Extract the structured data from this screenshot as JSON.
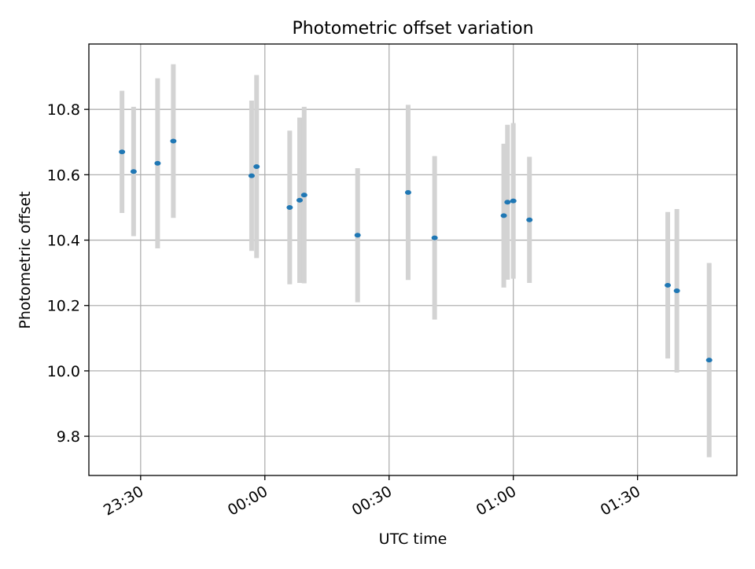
{
  "chart_data": {
    "type": "scatter",
    "title": "Photometric offset variation",
    "xlabel": "UTC time",
    "ylabel": "Photometric offset",
    "x_unit": "minutes after 23:00 UTC",
    "xlim": [
      17.5,
      174
    ],
    "ylim": [
      9.68,
      11.0
    ],
    "grid": true,
    "xticks": [
      {
        "value": 30,
        "label": "23:30"
      },
      {
        "value": 60,
        "label": "00:00"
      },
      {
        "value": 90,
        "label": "00:30"
      },
      {
        "value": 120,
        "label": "01:00"
      },
      {
        "value": 150,
        "label": "01:30"
      }
    ],
    "yticks": [
      {
        "value": 9.8,
        "label": "9.8"
      },
      {
        "value": 10.0,
        "label": "10.0"
      },
      {
        "value": 10.2,
        "label": "10.2"
      },
      {
        "value": 10.4,
        "label": "10.4"
      },
      {
        "value": 10.6,
        "label": "10.6"
      },
      {
        "value": 10.8,
        "label": "10.8"
      }
    ],
    "colors": {
      "point": "#1f77b4",
      "errorbar": "#d3d3d3",
      "grid": "#b0b0b0"
    },
    "points": [
      {
        "x": 25.5,
        "y": 10.67,
        "yerr": 0.187
      },
      {
        "x": 28.3,
        "y": 10.61,
        "yerr": 0.198
      },
      {
        "x": 34.1,
        "y": 10.635,
        "yerr": 0.26
      },
      {
        "x": 37.9,
        "y": 10.703,
        "yerr": 0.235
      },
      {
        "x": 56.8,
        "y": 10.597,
        "yerr": 0.23
      },
      {
        "x": 58.0,
        "y": 10.625,
        "yerr": 0.28
      },
      {
        "x": 66.0,
        "y": 10.5,
        "yerr": 0.235
      },
      {
        "x": 68.4,
        "y": 10.522,
        "yerr": 0.253
      },
      {
        "x": 69.5,
        "y": 10.538,
        "yerr": 0.27
      },
      {
        "x": 82.4,
        "y": 10.415,
        "yerr": 0.205
      },
      {
        "x": 94.6,
        "y": 10.546,
        "yerr": 0.268
      },
      {
        "x": 101.0,
        "y": 10.407,
        "yerr": 0.25
      },
      {
        "x": 117.7,
        "y": 10.475,
        "yerr": 0.22
      },
      {
        "x": 118.6,
        "y": 10.516,
        "yerr": 0.237
      },
      {
        "x": 120.0,
        "y": 10.52,
        "yerr": 0.238
      },
      {
        "x": 123.9,
        "y": 10.462,
        "yerr": 0.193
      },
      {
        "x": 157.3,
        "y": 10.262,
        "yerr": 0.224
      },
      {
        "x": 159.5,
        "y": 10.245,
        "yerr": 0.25
      },
      {
        "x": 167.3,
        "y": 10.033,
        "yerr": 0.297
      }
    ]
  }
}
